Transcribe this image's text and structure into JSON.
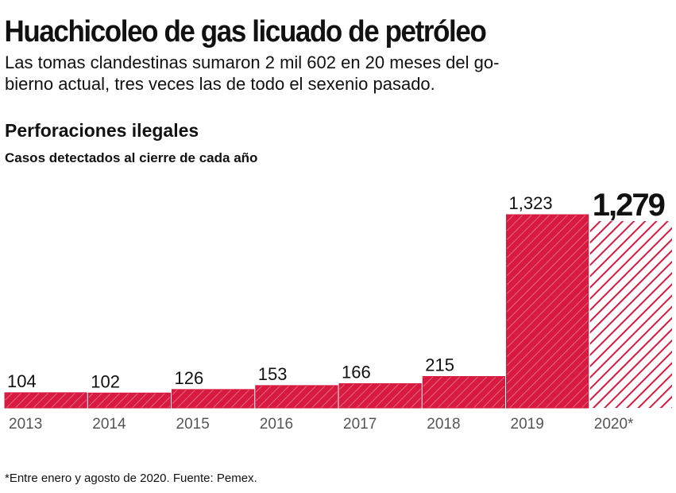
{
  "chart_data": {
    "type": "bar",
    "title": "Huachicoleo de gas licuado de petróleo",
    "subtitle_lines": [
      "Las tomas clandestinas sumaron 2 mil 602 en 20 meses del go-",
      "bierno actual, tres veces las de todo el sexenio pasado."
    ],
    "chart_title": "Perforaciones ilegales",
    "chart_subtitle": "Casos detectados al cierre de cada año",
    "categories": [
      "2013",
      "2014",
      "2015",
      "2016",
      "2017",
      "2018",
      "2019",
      "2020*"
    ],
    "values": [
      104,
      102,
      126,
      153,
      166,
      215,
      1323,
      1279
    ],
    "value_labels": [
      "104",
      "102",
      "126",
      "153",
      "166",
      "215",
      "1,323",
      "1,279"
    ],
    "bar_patterns": [
      "solid",
      "solid",
      "solid",
      "solid",
      "solid",
      "solid",
      "solid",
      "hatched"
    ],
    "color": "#d61a40",
    "note": "*Entre enero y agosto de 2020. Fuente: Pemex."
  }
}
